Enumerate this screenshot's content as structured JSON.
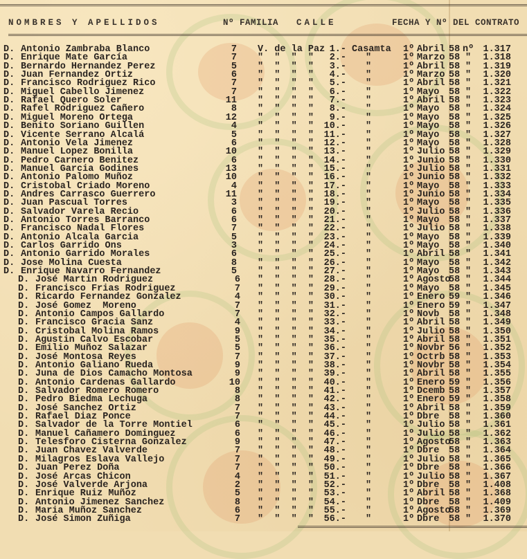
{
  "header": {
    "nombres": "NOMBRES Y APELLIDOS",
    "familia": "Nº FAMILIA",
    "calle": "CALLE",
    "fecha": "FECHA Y Nº DEL CONTRATO"
  },
  "colors": {
    "paper": "#f1ddb2",
    "ink": "#2a2420",
    "stamp_green": "#a0be78",
    "stamp_orange": "#e18c5a"
  },
  "rows": [
    {
      "d": "D.",
      "name": "Antonio Zambraba Blanco",
      "fam": "7",
      "calle": "V. de la Paz",
      "num": "1.-",
      "barrio": "Casamta",
      "dia": "1º",
      "mes": "Abril",
      "anio": "58",
      "sep": "nº",
      "contrato": "1.317"
    },
    {
      "d": "D.",
      "name": "Enrique Mate García",
      "fam": "7",
      "calle": "\"  \"  \"  \"",
      "num": "2.-",
      "barrio": "\"",
      "dia": "1º",
      "mes": "Marzo",
      "anio": "58",
      "sep": "\"",
      "contrato": "1.318"
    },
    {
      "d": "D.",
      "name": "Bernardo Hernandez Perez",
      "fam": "5",
      "calle": "\"  \"  \"  \"",
      "num": "3.-",
      "barrio": "\"",
      "dia": "1º",
      "mes": "Abril",
      "anio": "58",
      "sep": "\"",
      "contrato": "1.319"
    },
    {
      "d": "D.",
      "name": "Juan Fernandez Ortiz",
      "fam": "6",
      "calle": "\"  \"  \"  \"",
      "num": "4.-",
      "barrio": "\"",
      "dia": "1º",
      "mes": "Marzo",
      "anio": "58",
      "sep": "\"",
      "contrato": "1.320"
    },
    {
      "d": "D.",
      "name": "Francisco Rodriguez Rico",
      "fam": "7",
      "calle": "\"  \"  \"  \"",
      "num": "5.-",
      "barrio": "\"",
      "dia": "1º",
      "mes": "Abril",
      "anio": "58",
      "sep": "\"",
      "contrato": "1.321"
    },
    {
      "d": "D.",
      "name": "Miguel Cabello Jimenez",
      "fam": "7",
      "calle": "\"  \"  \"  \"",
      "num": "6.-",
      "barrio": "\"",
      "dia": "1º",
      "mes": "Mayo",
      "anio": "58",
      "sep": "\"",
      "contrato": "1.322"
    },
    {
      "d": "D.",
      "name": "Rafael Quero Soler",
      "fam": "11",
      "calle": "\"  \"  \"  \"",
      "num": "7.-",
      "barrio": "\"",
      "dia": "1º",
      "mes": "Abril",
      "anio": "58",
      "sep": "\"",
      "contrato": "1.323"
    },
    {
      "d": "D.",
      "name": "Rafel Rodriguez Cañero",
      "fam": "8",
      "calle": "\"  \"  \"  \"",
      "num": "8.-",
      "barrio": "\"",
      "dia": "1º",
      "mes": "Mayo",
      "anio": "58",
      "sep": "\"",
      "contrato": "1.324"
    },
    {
      "d": "D.",
      "name": "Miguel Moreno Ortega",
      "fam": "12",
      "calle": "\"  \"  \"  \"",
      "num": "9.-",
      "barrio": "\"",
      "dia": "1º",
      "mes": "Mayo",
      "anio": "58",
      "sep": "\"",
      "contrato": "1.325"
    },
    {
      "d": "D.",
      "name": "Benito Soriano Guillen",
      "fam": "4",
      "calle": "\"  \"  \"  \"",
      "num": "10.-",
      "barrio": "\"",
      "dia": "1º",
      "mes": "Mayo",
      "anio": "58",
      "sep": "\"",
      "contrato": "1.326"
    },
    {
      "d": "D.",
      "name": "Vicente Serrano Alcalá",
      "fam": "5",
      "calle": "\"  \"  \"  \"",
      "num": "11.-",
      "barrio": "\"",
      "dia": "1º",
      "mes": "Mayo",
      "anio": "58",
      "sep": "\"",
      "contrato": "1.327"
    },
    {
      "d": "D.",
      "name": "Antonio Vela Jimenez",
      "fam": "6",
      "calle": "\"  \"  \"  \"",
      "num": "12.-",
      "barrio": "\"",
      "dia": "1º",
      "mes": "Mayo",
      "anio": "58",
      "sep": "\"",
      "contrato": "1.328"
    },
    {
      "d": "D.",
      "name": "Manuel Lopez Bonilla",
      "fam": "10",
      "calle": "\"  \"  \"  \"",
      "num": "13.-",
      "barrio": "\"",
      "dia": "1º",
      "mes": "Julio",
      "anio": "58",
      "sep": "\"",
      "contrato": "1.329"
    },
    {
      "d": "D.",
      "name": "Pedro Carnero Benitez",
      "fam": "6",
      "calle": "\"  \"  \"  \"",
      "num": "14.-",
      "barrio": "\"",
      "dia": "1º",
      "mes": "Junio",
      "anio": "58",
      "sep": "\"",
      "contrato": "1.330"
    },
    {
      "d": "D.",
      "name": "Manuel Garcia Godines",
      "fam": "13",
      "calle": "\"  \"  \"  \"",
      "num": "15.-",
      "barrio": "\"",
      "dia": "1º",
      "mes": "Julio",
      "anio": "58",
      "sep": "\"",
      "contrato": "1.331"
    },
    {
      "d": "D.",
      "name": "Antonio Palomo Muñoz",
      "fam": "10",
      "calle": "\"  \"  \"  \"",
      "num": "16.-",
      "barrio": "\"",
      "dia": "1º",
      "mes": "Junio",
      "anio": "58",
      "sep": "\"",
      "contrato": "1.332"
    },
    {
      "d": "D.",
      "name": "Cristobal Criado Moreno",
      "fam": "4",
      "calle": "\"  \"  \"  \"",
      "num": "17.-",
      "barrio": "\"",
      "dia": "1º",
      "mes": "Mayo",
      "anio": "58",
      "sep": "\"",
      "contrato": "1.333"
    },
    {
      "d": "D.",
      "name": "Andres Carrasco Guerrero",
      "fam": "11",
      "calle": "\"  \"  \"  \"",
      "num": "18.-",
      "barrio": "\"",
      "dia": "1º",
      "mes": "Junio",
      "anio": "58",
      "sep": "\"",
      "contrato": "1.334"
    },
    {
      "d": "D.",
      "name": "Juan Pascual Torres",
      "fam": "3",
      "calle": "\"  \"  \"  \"",
      "num": "19.-",
      "barrio": "\"",
      "dia": "1º",
      "mes": "Mayo",
      "anio": "58",
      "sep": "\"",
      "contrato": "1.335"
    },
    {
      "d": "D.",
      "name": "Salvador Varela Recio",
      "fam": "6",
      "calle": "\"  \"  \"  \"",
      "num": "20.-",
      "barrio": "\"",
      "dia": "1º",
      "mes": "Julio",
      "anio": "58",
      "sep": "\"",
      "contrato": "1.336"
    },
    {
      "d": "D.",
      "name": "Antonio Torres Barranco",
      "fam": "6",
      "calle": "\"  \"  \"  \"",
      "num": "21.-",
      "barrio": "\"",
      "dia": "1º",
      "mes": "Mayo",
      "anio": "58",
      "sep": "\"",
      "contrato": "1.337"
    },
    {
      "d": "D.",
      "name": "Francisco Nadal Flores",
      "fam": "7",
      "calle": "\"  \"  \"  \"",
      "num": "22.-",
      "barrio": "\"",
      "dia": "1º",
      "mes": "Julio",
      "anio": "58",
      "sep": "\"",
      "contrato": "1.338"
    },
    {
      "d": "D.",
      "name": "Antonio Alcala Garcia",
      "fam": "5",
      "calle": "\"  \"  \"  \"",
      "num": "23.-",
      "barrio": "\"",
      "dia": "1º",
      "mes": "Mayo",
      "anio": "58",
      "sep": "\"",
      "contrato": "1.339"
    },
    {
      "d": "D.",
      "name": "Carlos Garrido Ons",
      "fam": "3",
      "calle": "\"  \"  \"  \"",
      "num": "24.-",
      "barrio": "\"",
      "dia": "1º",
      "mes": "Mayo",
      "anio": "58",
      "sep": "\"",
      "contrato": "1.340"
    },
    {
      "d": "D.",
      "name": "Antonio Garrido Morales",
      "fam": "6",
      "calle": "\"  \"  \"  \"",
      "num": "25.-",
      "barrio": "\"",
      "dia": "1º",
      "mes": "Abril",
      "anio": "58",
      "sep": "\"",
      "contrato": "1.341"
    },
    {
      "d": "D.",
      "name": "Jose Molina Cuesta",
      "fam": "8",
      "calle": "\"  \"  \"  \"",
      "num": "26.-",
      "barrio": "\"",
      "dia": "1º",
      "mes": "Mayo",
      "anio": "58",
      "sep": "\"",
      "contrato": "1.342"
    },
    {
      "d": "D.",
      "name": "Enrique Navarro Fernandez",
      "fam": "5",
      "calle": "\"  \"  \"  \"",
      "num": "27.-",
      "barrio": "\"",
      "dia": "1º",
      "mes": "Mayo",
      "anio": "58",
      "sep": "\"",
      "contrato": "1.343"
    },
    {
      "d": "D.",
      "name": "José Martin Rodriguez",
      "fam": "6",
      "calle": "\"  \"  \"  \"",
      "num": "28.-",
      "barrio": "\"",
      "dia": "1º",
      "mes": "Agosto",
      "anio": "58",
      "sep": "\"",
      "contrato": "1.344"
    },
    {
      "d": "D.",
      "name": "Francisco Frias Rodriguez",
      "fam": "7",
      "calle": "\"  \"  \"  \"",
      "num": "29.-",
      "barrio": "\"",
      "dia": "1º",
      "mes": "Mayo",
      "anio": "58",
      "sep": "\"",
      "contrato": "1.345"
    },
    {
      "d": "D.",
      "name": "Ricardo Fernandez Gonzalez",
      "fam": "4",
      "calle": "\"  \"  \"  \"",
      "num": "30.-",
      "barrio": "\"",
      "dia": "1º",
      "mes": "Enero",
      "anio": "59",
      "sep": "\"",
      "contrato": "1.346"
    },
    {
      "d": "D.",
      "name": "José Gomez  Moreno",
      "fam": "7",
      "calle": "\"  \"  \"  \"",
      "num": "31.-",
      "barrio": "\"",
      "dia": "1º",
      "mes": "Enero",
      "anio": "59",
      "sep": "\"",
      "contrato": "1.347"
    },
    {
      "d": "D.",
      "name": "Antonio Campos Gallardo",
      "fam": "7",
      "calle": "\"  \"  \"  \"",
      "num": "32.-",
      "barrio": "\"",
      "dia": "1º",
      "mes": "Novb",
      "anio": "58",
      "sep": "\"",
      "contrato": "1.348"
    },
    {
      "d": "D.",
      "name": "Francisco Gracia Sanz",
      "fam": "4",
      "calle": "\"  \"  \"  \"",
      "num": "33.-",
      "barrio": "\"",
      "dia": "1º",
      "mes": "Abril",
      "anio": "58",
      "sep": "\"",
      "contrato": "1.349"
    },
    {
      "d": "D.",
      "name": "Cristobal Molina Ramos",
      "fam": "9",
      "calle": "\"  \"  \"  \"",
      "num": "34.-",
      "barrio": "\"",
      "dia": "1º",
      "mes": "Julio",
      "anio": "58",
      "sep": "\"",
      "contrato": "1.350"
    },
    {
      "d": "D.",
      "name": "Agustin Calvo Escobar",
      "fam": "5",
      "calle": "\"  \"  \"  \"",
      "num": "35.-",
      "barrio": "\"",
      "dia": "1º",
      "mes": "Abril",
      "anio": "58",
      "sep": "\"",
      "contrato": "1.351"
    },
    {
      "d": "D.",
      "name": "Emilio Muñoz Salazar",
      "fam": "5",
      "calle": "\"  \"  \"  \"",
      "num": "36.-",
      "barrio": "\"",
      "dia": "1º",
      "mes": "Novbr",
      "anio": "56",
      "sep": "\"",
      "contrato": "1.352"
    },
    {
      "d": "D.",
      "name": "José Montosa Reyes",
      "fam": "7",
      "calle": "\"  \"  \"  \"",
      "num": "37.-",
      "barrio": "\"",
      "dia": "1º",
      "mes": "Octrb",
      "anio": "58",
      "sep": "\"",
      "contrato": "1.353"
    },
    {
      "d": "D.",
      "name": "Antonio Galiano Rueda",
      "fam": "9",
      "calle": "\"  \"  \"  \"",
      "num": "38.-",
      "barrio": "\"",
      "dia": "1º",
      "mes": "Novbr",
      "anio": "58",
      "sep": "\"",
      "contrato": "1.354"
    },
    {
      "d": "D.",
      "name": "Juna de Dios Camacho Montosa",
      "fam": "9",
      "calle": "\"  \"  \"  \"",
      "num": "39.-",
      "barrio": "\"",
      "dia": "1º",
      "mes": "Abril",
      "anio": "58",
      "sep": "\"",
      "contrato": "1.355"
    },
    {
      "d": "D.",
      "name": "Antonio Cardenas Gallardo",
      "fam": "10",
      "calle": "\"  \"  \"  \"",
      "num": "40.-",
      "barrio": "\"",
      "dia": "1º",
      "mes": "Enero",
      "anio": "59",
      "sep": "\"",
      "contrato": "1.356"
    },
    {
      "d": "D.",
      "name": "Salvador Romero Romero",
      "fam": "8",
      "calle": "\"  \"  \"  \"",
      "num": "41.-",
      "barrio": "\"",
      "dia": "1º",
      "mes": "Dcemb",
      "anio": "58",
      "sep": "\"",
      "contrato": "1.357"
    },
    {
      "d": "D.",
      "name": "Pedro Biedma Lechuga",
      "fam": "8",
      "calle": "\"  \"  \"  \"",
      "num": "42.-",
      "barrio": "\"",
      "dia": "1º",
      "mes": "Enero",
      "anio": "59",
      "sep": "\"",
      "contrato": "1.358"
    },
    {
      "d": "D.",
      "name": "José Sanchez Ortiz",
      "fam": "7",
      "calle": "\"  \"  \"  \"",
      "num": "43.-",
      "barrio": "\"",
      "dia": "1º",
      "mes": "Abril",
      "anio": "58",
      "sep": "\"",
      "contrato": "1.359"
    },
    {
      "d": "D.",
      "name": "Rafael Diaz Ponce",
      "fam": "7",
      "calle": "\"  \"  \"  \"",
      "num": "44.-",
      "barrio": "\"",
      "dia": "1º",
      "mes": "Dbre",
      "anio": "58",
      "sep": "\"",
      "contrato": "1.360"
    },
    {
      "d": "D.",
      "name": "Salvador de la Torre Montiel",
      "fam": "6",
      "calle": "\"  \"  \"  \"",
      "num": "45.-",
      "barrio": "\"",
      "dia": "1º",
      "mes": "Julio",
      "anio": "58",
      "sep": "\"",
      "contrato": "1.361"
    },
    {
      "d": "D.",
      "name": "Manuel Cañamero Dominguez",
      "fam": "6",
      "calle": "\"  \"  \"  \"",
      "num": "46.-",
      "barrio": "\"",
      "dia": "1º",
      "mes": "Julio",
      "anio": "58",
      "sep": "\"",
      "contrato": "1.362"
    },
    {
      "d": "D.",
      "name": "Telesforo Cisterna Gonzalez",
      "fam": "9",
      "calle": "\"  \"  \"  \"",
      "num": "47.-",
      "barrio": "\"",
      "dia": "1º",
      "mes": "Agosto",
      "anio": "58",
      "sep": "\"",
      "contrato": "1.363"
    },
    {
      "d": "D.",
      "name": "Juan Chavez Valverde",
      "fam": "7",
      "calle": "\"  \"  \"  \"",
      "num": "48.-",
      "barrio": "\"",
      "dia": "1º",
      "mes": "Dbre",
      "anio": "58",
      "sep": "\"",
      "contrato": "1.364"
    },
    {
      "d": "D.",
      "name": "Milagros Eslava Vallejo",
      "fam": "7",
      "calle": "\"  \"  \"  \"",
      "num": "49.-",
      "barrio": "\"",
      "dia": "1º",
      "mes": "Julio",
      "anio": "58",
      "sep": "\"",
      "contrato": "1.365"
    },
    {
      "d": "D.",
      "name": "Juan Perez Doña",
      "fam": "7",
      "calle": "\"  \"  \"  \"",
      "num": "50.-",
      "barrio": "\"",
      "dia": "1º",
      "mes": "Dbre",
      "anio": "58",
      "sep": "\"",
      "contrato": "1.366"
    },
    {
      "d": "D.",
      "name": "José Arcas Chicon",
      "fam": "4",
      "calle": "\"  \"  \"  \"",
      "num": "51.-",
      "barrio": "\"",
      "dia": "1º",
      "mes": "Julio",
      "anio": "58",
      "sep": "\"",
      "contrato": "1.367"
    },
    {
      "d": "D.",
      "name": "José Valverde Arjona",
      "fam": "2",
      "calle": "\"  \"  \"  \"",
      "num": "52.-",
      "barrio": "\"",
      "dia": "1º",
      "mes": "Dbre",
      "anio": "58",
      "sep": "\"",
      "contrato": "1.408"
    },
    {
      "d": "D.",
      "name": "Enrique Ruiz Muñoz",
      "fam": "5",
      "calle": "\"  \"  \"  \"",
      "num": "53.-",
      "barrio": "\"",
      "dia": "1º",
      "mes": "Abril",
      "anio": "58",
      "sep": "\"",
      "contrato": "1.368"
    },
    {
      "d": "D.",
      "name": "Antonio Jimenez Sanchez",
      "fam": "8",
      "calle": "\"  \"  \"  \"",
      "num": "54.-",
      "barrio": "\"",
      "dia": "1º",
      "mes": "Dbre",
      "anio": "58",
      "sep": "\"",
      "contrato": "1.409"
    },
    {
      "d": "D.",
      "name": "Maria Muñoz Sanchez",
      "fam": "6",
      "calle": "\"  \"  \"  \"",
      "num": "55.-",
      "barrio": "\"",
      "dia": "1º",
      "mes": "Agosto",
      "anio": "58",
      "sep": "\"",
      "contrato": "1.369"
    },
    {
      "d": "D.",
      "name": "José Simon Zuñiga",
      "fam": "7",
      "calle": "\"  \"  \"  \"",
      "num": "56.-",
      "barrio": "\"",
      "dia": "1º",
      "mes": "Dbre",
      "anio": "58",
      "sep": "\"",
      "contrato": "1.370"
    }
  ]
}
